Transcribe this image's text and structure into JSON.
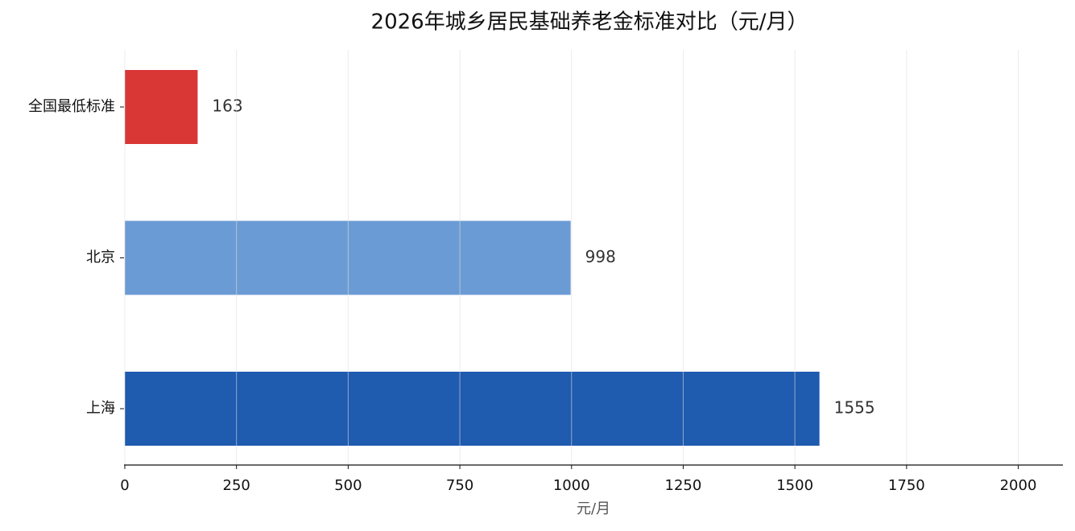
{
  "chart_data": {
    "type": "barh",
    "title": "2026年城乡居民基础养老金标准对比（元/月）",
    "xlabel": "元/月",
    "categories": [
      "全国最低标准",
      "北京",
      "上海"
    ],
    "values": [
      163,
      998,
      1555
    ],
    "colors": [
      "#d93636",
      "#6b9bd4",
      "#1f5baf"
    ],
    "xlim": [
      0,
      2100
    ],
    "xticks": [
      0,
      250,
      500,
      750,
      1000,
      1250,
      1500,
      1750,
      2000
    ],
    "grid": true
  }
}
